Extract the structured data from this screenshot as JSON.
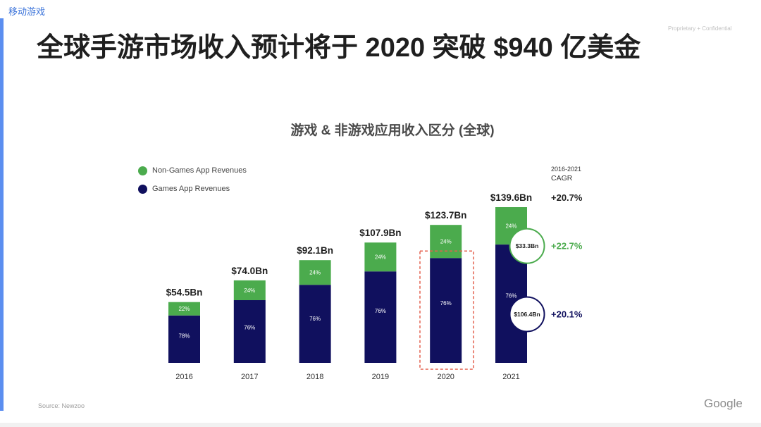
{
  "slide": {
    "section_label": "移动游戏",
    "confidential_label": "Proprietary + Confidential",
    "title": "全球手游市场收入预计将于 2020 突破 $940 亿美金",
    "source": "Source: Newzoo",
    "logo_text": "Google"
  },
  "colors": {
    "accent_blue": "#5b8ef0",
    "highlight": "#e4604e",
    "total_cagr_text": "#222222"
  },
  "chart_data": {
    "type": "bar",
    "stacked": true,
    "title": "游戏 & 非游戏应用收入区分 (全球)",
    "categories": [
      "2016",
      "2017",
      "2018",
      "2019",
      "2020",
      "2021"
    ],
    "totals": [
      54.5,
      74.0,
      92.1,
      107.9,
      123.7,
      139.6
    ],
    "total_labels": [
      "$54.5Bn",
      "$74.0Bn",
      "$92.1Bn",
      "$107.9Bn",
      "$123.7Bn",
      "$139.6Bn"
    ],
    "series": [
      {
        "name": "Non-Games App Revenues",
        "color": "#4bab4d",
        "share_pct": [
          22,
          24,
          24,
          24,
          24,
          24
        ],
        "share_labels": [
          "22%",
          "24%",
          "24%",
          "24%",
          "24%",
          "24%"
        ],
        "callout": {
          "category": "2021",
          "label": "$33.3Bn"
        },
        "cagr": "+22.7%"
      },
      {
        "name": "Games App Revenues",
        "color": "#10105e",
        "share_pct": [
          78,
          76,
          76,
          76,
          76,
          76
        ],
        "share_labels": [
          "78%",
          "76%",
          "76%",
          "76%",
          "76%",
          "76%"
        ],
        "callout": {
          "category": "2021",
          "label": "$106.4Bn"
        },
        "cagr": "+20.1%"
      }
    ],
    "cagr_period": "2016-2021",
    "cagr_label": "CAGR",
    "total_cagr": "+20.7%",
    "highlight_category": "2020",
    "ylim": [
      0,
      140
    ],
    "grid": false,
    "legend": "top-left"
  }
}
